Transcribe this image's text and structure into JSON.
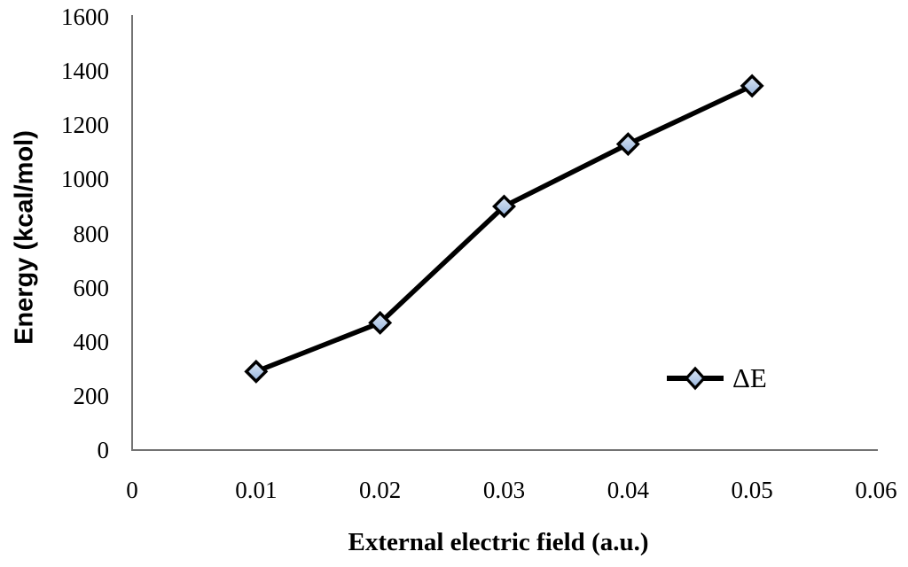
{
  "chart_data": {
    "type": "line",
    "title": "",
    "xlabel": "External electric field (a.u.)",
    "ylabel": "Energy (kcal/mol)",
    "x": [
      0.01,
      0.02,
      0.03,
      0.04,
      0.05
    ],
    "series": [
      {
        "name": "ΔE",
        "values": [
          290,
          470,
          900,
          1130,
          1345
        ],
        "line_color": "#000000",
        "marker": "diamond",
        "marker_fill_top": "#dce7f5",
        "marker_fill_bottom": "#96b4dd",
        "marker_border": "#000000"
      }
    ],
    "xlim": [
      0,
      0.06
    ],
    "ylim": [
      0,
      1600
    ],
    "x_tick_values": [
      0,
      0.01,
      0.02,
      0.03,
      0.04,
      0.05,
      0.06
    ],
    "x_tick_labels": [
      "0",
      "0.01",
      "0.02",
      "0.03",
      "0.04",
      "0.05",
      "0.06"
    ],
    "y_tick_values": [
      0,
      200,
      400,
      600,
      800,
      1000,
      1200,
      1400,
      1600
    ],
    "y_tick_labels": [
      "0",
      "200",
      "400",
      "600",
      "800",
      "1000",
      "1200",
      "1400",
      "1600"
    ],
    "grid": false,
    "legend_position": "right-middle",
    "axis_color": "#737373",
    "background": "#ffffff"
  }
}
